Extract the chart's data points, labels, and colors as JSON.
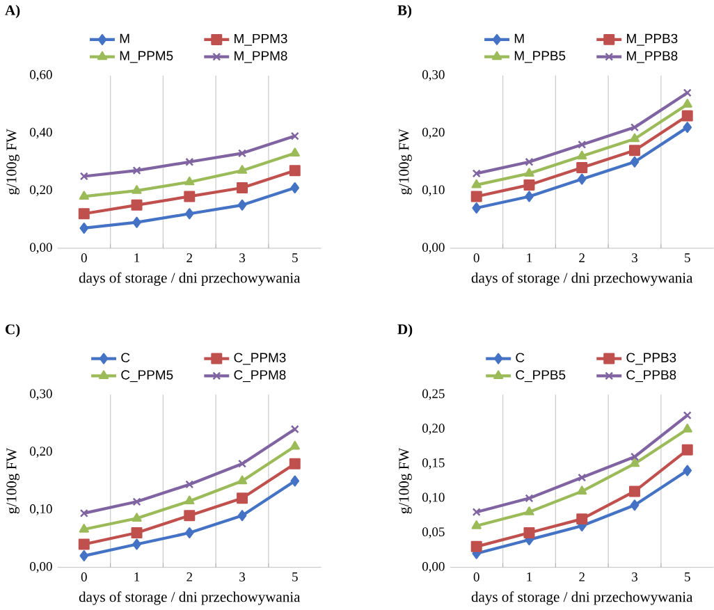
{
  "chart_data": [
    {
      "type": "line",
      "title": "A)",
      "xlabel": "days of storage / dni przechowywania",
      "ylabel": "g/100g FW",
      "categories": [
        "0",
        "1",
        "2",
        "3",
        "5"
      ],
      "series": [
        {
          "name": "M",
          "color": "#4472c4",
          "marker": "diamond",
          "values": [
            0.07,
            0.09,
            0.12,
            0.15,
            0.21
          ]
        },
        {
          "name": "M_PPM3",
          "color": "#c0504d",
          "marker": "square",
          "values": [
            0.12,
            0.15,
            0.18,
            0.21,
            0.27
          ]
        },
        {
          "name": "M_PPM5",
          "color": "#9bbb59",
          "marker": "triangle",
          "values": [
            0.18,
            0.2,
            0.23,
            0.27,
            0.33
          ]
        },
        {
          "name": "M_PPM8",
          "color": "#8064a2",
          "marker": "cross",
          "values": [
            0.25,
            0.27,
            0.3,
            0.33,
            0.39
          ]
        }
      ],
      "ylim": [
        0,
        0.6
      ],
      "yticks": [
        {
          "value": 0,
          "label": "0,00"
        },
        {
          "value": 0.2,
          "label": "0,20"
        },
        {
          "value": 0.4,
          "label": "0,40"
        },
        {
          "value": 0.6,
          "label": "0,60"
        }
      ],
      "grid": "x",
      "legend": "top"
    },
    {
      "type": "line",
      "title": "B)",
      "xlabel": "days of storage / dni przechowywania",
      "ylabel": "g/100g FW",
      "categories": [
        "0",
        "1",
        "2",
        "3",
        "5"
      ],
      "series": [
        {
          "name": "M",
          "color": "#4472c4",
          "marker": "diamond",
          "values": [
            0.07,
            0.09,
            0.12,
            0.15,
            0.21
          ]
        },
        {
          "name": "M_PPB3",
          "color": "#c0504d",
          "marker": "square",
          "values": [
            0.09,
            0.11,
            0.14,
            0.17,
            0.23
          ]
        },
        {
          "name": "M_PPB5",
          "color": "#9bbb59",
          "marker": "triangle",
          "values": [
            0.11,
            0.13,
            0.16,
            0.19,
            0.25
          ]
        },
        {
          "name": "M_PPB8",
          "color": "#8064a2",
          "marker": "cross",
          "values": [
            0.13,
            0.15,
            0.18,
            0.21,
            0.27
          ]
        }
      ],
      "ylim": [
        0,
        0.3
      ],
      "yticks": [
        {
          "value": 0,
          "label": "0,00"
        },
        {
          "value": 0.1,
          "label": "0,10"
        },
        {
          "value": 0.2,
          "label": "0,20"
        },
        {
          "value": 0.3,
          "label": "0,30"
        }
      ],
      "grid": "x",
      "legend": "top"
    },
    {
      "type": "line",
      "title": "C)",
      "xlabel": "days of storage / dni przechowywania",
      "ylabel": "g/100g FW",
      "categories": [
        "0",
        "1",
        "2",
        "3",
        "5"
      ],
      "series": [
        {
          "name": "C",
          "color": "#4472c4",
          "marker": "diamond",
          "values": [
            0.02,
            0.04,
            0.06,
            0.09,
            0.15
          ]
        },
        {
          "name": "C_PPM3",
          "color": "#c0504d",
          "marker": "square",
          "values": [
            0.04,
            0.06,
            0.09,
            0.12,
            0.18
          ]
        },
        {
          "name": "C_PPM5",
          "color": "#9bbb59",
          "marker": "triangle",
          "values": [
            0.066,
            0.085,
            0.115,
            0.15,
            0.21
          ]
        },
        {
          "name": "C_PPM8",
          "color": "#8064a2",
          "marker": "cross",
          "values": [
            0.094,
            0.114,
            0.144,
            0.18,
            0.24
          ]
        }
      ],
      "ylim": [
        0,
        0.3
      ],
      "yticks": [
        {
          "value": 0,
          "label": "0,00"
        },
        {
          "value": 0.1,
          "label": "0,10"
        },
        {
          "value": 0.2,
          "label": "0,20"
        },
        {
          "value": 0.3,
          "label": "0,30"
        }
      ],
      "grid": "x",
      "legend": "top"
    },
    {
      "type": "line",
      "title": "D)",
      "xlabel": "days of storage / dni przechowywania",
      "ylabel": "g/100g FW",
      "categories": [
        "0",
        "1",
        "2",
        "3",
        "5"
      ],
      "series": [
        {
          "name": "C",
          "color": "#4472c4",
          "marker": "diamond",
          "values": [
            0.02,
            0.04,
            0.06,
            0.09,
            0.14
          ]
        },
        {
          "name": "C_PPB3",
          "color": "#c0504d",
          "marker": "square",
          "values": [
            0.03,
            0.05,
            0.07,
            0.11,
            0.17
          ]
        },
        {
          "name": "C_PPB5",
          "color": "#9bbb59",
          "marker": "triangle",
          "values": [
            0.06,
            0.08,
            0.11,
            0.15,
            0.2
          ]
        },
        {
          "name": "C_PPB8",
          "color": "#8064a2",
          "marker": "cross",
          "values": [
            0.08,
            0.1,
            0.13,
            0.16,
            0.22
          ]
        }
      ],
      "ylim": [
        0,
        0.25
      ],
      "yticks": [
        {
          "value": 0,
          "label": "0,00"
        },
        {
          "value": 0.05,
          "label": "0,05"
        },
        {
          "value": 0.1,
          "label": "0,10"
        },
        {
          "value": 0.15,
          "label": "0,15"
        },
        {
          "value": 0.2,
          "label": "0,20"
        },
        {
          "value": 0.25,
          "label": "0,25"
        }
      ],
      "grid": "x",
      "legend": "top"
    }
  ]
}
